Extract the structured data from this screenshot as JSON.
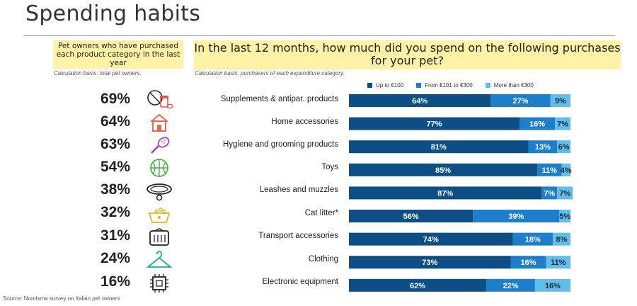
{
  "title": "Spending habits",
  "left_header": "Pet owners who have purchased each product category in the last year",
  "right_header": "In the last 12 months, how much did you spend on the following purchases for your pet?",
  "left_basis": "Calculation basis: total pet owners.",
  "right_basis": "Calculation basis: purchasers of each expenditure category.",
  "source": "Source: Nomisma survey on Italian pet owners",
  "colors": {
    "up_to_100": "#0d4f85",
    "from_101_to_300": "#1f7ec9",
    "more_than_300": "#62bdea"
  },
  "icons": [
    "pills-icon",
    "house-icon",
    "brush-icon",
    "ball-icon",
    "collar-icon",
    "litter-box-icon",
    "carrier-icon",
    "hanger-icon",
    "chip-icon"
  ],
  "chart_data": {
    "type": "bar",
    "stacked": true,
    "orientation": "horizontal",
    "categories": [
      "Supplements & antipar. products",
      "Home accessories",
      "Hygiene and grooming products",
      "Toys",
      "Leashes and muzzles",
      "Cat litter*",
      "Transport accessories",
      "Clothing",
      "Electronic equipment"
    ],
    "purchased_pct": [
      "69%",
      "64%",
      "63%",
      "54%",
      "38%",
      "32%",
      "31%",
      "24%",
      "16%"
    ],
    "legend_position": "top",
    "series": [
      {
        "name": "Up to €100",
        "values": [
          64,
          77,
          81,
          85,
          87,
          56,
          74,
          73,
          62
        ]
      },
      {
        "name": "From €101 to €300",
        "values": [
          27,
          16,
          13,
          11,
          7,
          39,
          18,
          16,
          22
        ]
      },
      {
        "name": "More than €300",
        "values": [
          9,
          7,
          6,
          4,
          7,
          5,
          8,
          11,
          16
        ]
      }
    ]
  }
}
